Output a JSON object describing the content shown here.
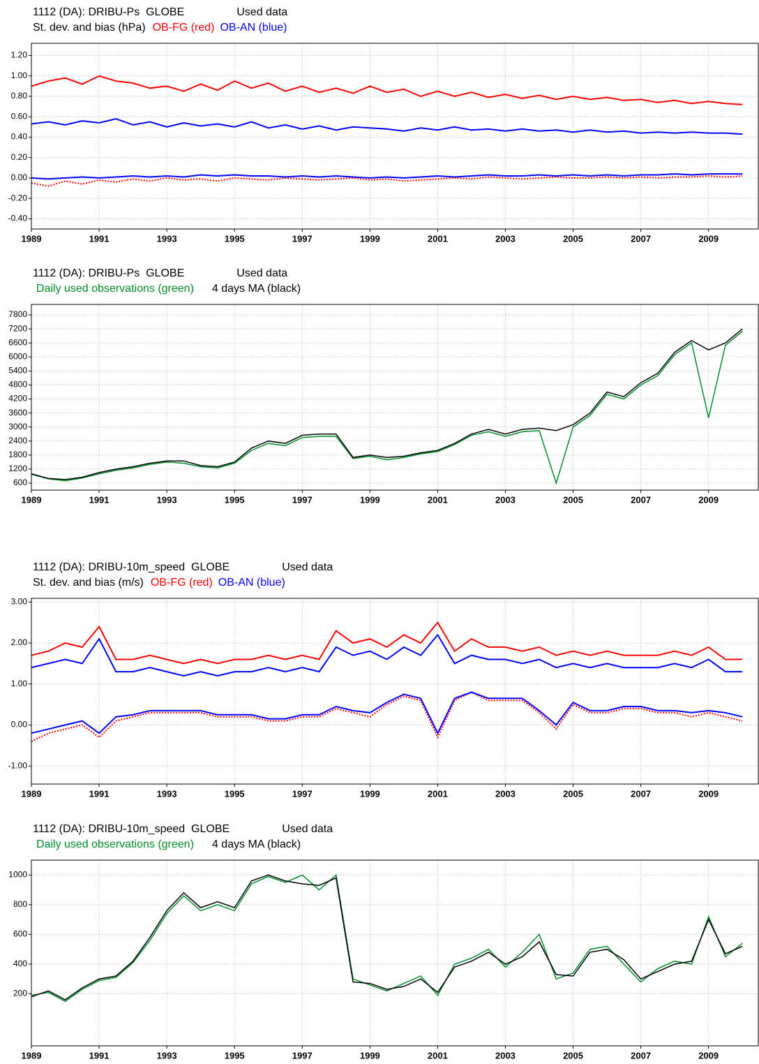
{
  "chart_data": [
    {
      "type": "line",
      "title": "1112 (DA): DRIBU-Ps  GLOBE",
      "annotation": "Used data",
      "ylabel": "St. dev. and bias (hPa)",
      "x": [
        1989,
        1989.5,
        1990,
        1990.5,
        1991,
        1991.5,
        1992,
        1992.5,
        1993,
        1993.5,
        1994,
        1994.5,
        1995,
        1995.5,
        1996,
        1996.5,
        1997,
        1997.5,
        1998,
        1998.5,
        1999,
        1999.5,
        2000,
        2000.5,
        2001,
        2001.5,
        2002,
        2002.5,
        2003,
        2003.5,
        2004,
        2004.5,
        2005,
        2005.5,
        2006,
        2006.5,
        2007,
        2007.5,
        2008,
        2008.5,
        2009,
        2009.5,
        2010
      ],
      "xlim": [
        1989,
        2010.47
      ],
      "xticks": [
        1989,
        1991,
        1993,
        1995,
        1997,
        1999,
        2001,
        2003,
        2005,
        2007,
        2009
      ],
      "ylim": [
        -0.5,
        1.32
      ],
      "yticks": [
        {
          "value": -0.4,
          "label": "-0.40"
        },
        {
          "value": -0.2,
          "label": "-0.20"
        },
        {
          "value": 0,
          "label": "0.00"
        },
        {
          "value": 0.2,
          "label": "0.20"
        },
        {
          "value": 0.4,
          "label": "0.40"
        },
        {
          "value": 0.6,
          "label": "0.60"
        },
        {
          "value": 0.8,
          "label": "0.80"
        },
        {
          "value": 1.0,
          "label": "1.00"
        },
        {
          "value": 1.2,
          "label": "1.20"
        }
      ],
      "grid": true,
      "series": [
        {
          "name": "OB-FG (red)",
          "color": "#ff0000",
          "bias_dotted": true,
          "stdev": [
            0.9,
            0.95,
            0.98,
            0.92,
            1.0,
            0.95,
            0.93,
            0.88,
            0.9,
            0.85,
            0.92,
            0.86,
            0.95,
            0.88,
            0.93,
            0.85,
            0.9,
            0.84,
            0.88,
            0.83,
            0.9,
            0.84,
            0.87,
            0.8,
            0.85,
            0.8,
            0.84,
            0.79,
            0.82,
            0.78,
            0.81,
            0.77,
            0.8,
            0.77,
            0.79,
            0.76,
            0.77,
            0.74,
            0.76,
            0.73,
            0.75,
            0.73,
            0.72
          ],
          "bias": [
            -0.05,
            -0.08,
            -0.03,
            -0.06,
            -0.02,
            -0.04,
            -0.01,
            -0.03,
            0,
            -0.02,
            -0.01,
            -0.03,
            0,
            -0.01,
            -0.02,
            0,
            -0.01,
            -0.02,
            -0.01,
            0,
            -0.02,
            -0.01,
            -0.03,
            -0.02,
            -0.01,
            0,
            -0.01,
            0.01,
            0,
            -0.01,
            0,
            0.01,
            0,
            0,
            0.01,
            0,
            0.01,
            0,
            0.01,
            0.01,
            0.02,
            0.01,
            0.02
          ]
        },
        {
          "name": "OB-AN (blue)",
          "color": "#0000ff",
          "bias_dotted": false,
          "stdev": [
            0.53,
            0.55,
            0.52,
            0.56,
            0.54,
            0.58,
            0.52,
            0.55,
            0.5,
            0.54,
            0.51,
            0.53,
            0.5,
            0.55,
            0.49,
            0.52,
            0.48,
            0.51,
            0.47,
            0.5,
            0.49,
            0.48,
            0.46,
            0.49,
            0.47,
            0.5,
            0.47,
            0.48,
            0.46,
            0.48,
            0.46,
            0.47,
            0.45,
            0.47,
            0.45,
            0.46,
            0.44,
            0.45,
            0.44,
            0.45,
            0.44,
            0.44,
            0.43
          ],
          "bias": [
            0,
            -0.01,
            0,
            0.01,
            0,
            0.01,
            0.02,
            0.01,
            0.02,
            0.01,
            0.03,
            0.02,
            0.03,
            0.02,
            0.02,
            0.01,
            0.02,
            0.01,
            0.02,
            0.01,
            0,
            0.01,
            0,
            0.01,
            0.02,
            0.01,
            0.02,
            0.03,
            0.02,
            0.02,
            0.03,
            0.02,
            0.03,
            0.02,
            0.03,
            0.02,
            0.03,
            0.03,
            0.04,
            0.03,
            0.04,
            0.04,
            0.04
          ]
        }
      ]
    },
    {
      "type": "line",
      "title": "1112 (DA): DRIBU-Ps  GLOBE",
      "annotation": "Used data",
      "x": [
        1989,
        1989.5,
        1990,
        1990.5,
        1991,
        1991.5,
        1992,
        1992.5,
        1993,
        1993.5,
        1994,
        1994.5,
        1995,
        1995.5,
        1996,
        1996.5,
        1997,
        1997.5,
        1998,
        1998.5,
        1999,
        1999.5,
        2000,
        2000.5,
        2001,
        2001.5,
        2002,
        2002.5,
        2003,
        2003.5,
        2004,
        2004.5,
        2005,
        2005.5,
        2006,
        2006.5,
        2007,
        2007.5,
        2008,
        2008.5,
        2009,
        2009.5,
        2010
      ],
      "xlim": [
        1989,
        2010.47
      ],
      "xticks": [
        1989,
        1991,
        1993,
        1995,
        1997,
        1999,
        2001,
        2003,
        2005,
        2007,
        2009
      ],
      "ylim": [
        300,
        8250
      ],
      "yticks": [
        600,
        1200,
        1800,
        2400,
        3000,
        3600,
        4200,
        4800,
        5400,
        6000,
        6600,
        7200,
        7800
      ],
      "grid": true,
      "series": [
        {
          "name": "Daily used observations (green)",
          "color": "#008c2a",
          "values": [
            980,
            780,
            700,
            820,
            1000,
            1150,
            1250,
            1400,
            1500,
            1450,
            1300,
            1250,
            1450,
            2000,
            2300,
            2200,
            2550,
            2600,
            2600,
            1650,
            1750,
            1600,
            1700,
            1850,
            1950,
            2250,
            2650,
            2800,
            2600,
            2800,
            2850,
            600,
            3000,
            3500,
            4400,
            4200,
            4800,
            5200,
            6100,
            6600,
            3400,
            6500,
            7100
          ]
        },
        {
          "name": "4 days MA (black)",
          "color": "#000000",
          "values": [
            1000,
            800,
            750,
            850,
            1050,
            1200,
            1300,
            1450,
            1550,
            1550,
            1350,
            1300,
            1500,
            2100,
            2400,
            2300,
            2650,
            2700,
            2700,
            1700,
            1800,
            1700,
            1750,
            1900,
            2000,
            2300,
            2700,
            2900,
            2700,
            2900,
            2950,
            2850,
            3100,
            3600,
            4500,
            4300,
            4900,
            5300,
            6200,
            6700,
            6300,
            6600,
            7200
          ]
        }
      ]
    },
    {
      "type": "line",
      "title": "1112 (DA): DRIBU-10m_speed  GLOBE",
      "annotation": "Used data",
      "ylabel": "St. dev. and bias (m/s)",
      "x": [
        1989,
        1989.5,
        1990,
        1990.5,
        1991,
        1991.5,
        1992,
        1992.5,
        1993,
        1993.5,
        1994,
        1994.5,
        1995,
        1995.5,
        1996,
        1996.5,
        1997,
        1997.5,
        1998,
        1998.5,
        1999,
        1999.5,
        2000,
        2000.5,
        2001,
        2001.5,
        2002,
        2002.5,
        2003,
        2003.5,
        2004,
        2004.5,
        2005,
        2005.5,
        2006,
        2006.5,
        2007,
        2007.5,
        2008,
        2008.5,
        2009,
        2009.5,
        2010
      ],
      "xlim": [
        1989,
        2010.47
      ],
      "xticks": [
        1989,
        1991,
        1993,
        1995,
        1997,
        1999,
        2001,
        2003,
        2005,
        2007,
        2009
      ],
      "ylim": [
        -1.44,
        3.09
      ],
      "yticks": [
        {
          "value": -1,
          "label": "-1.00"
        },
        {
          "value": 0,
          "label": "0.00"
        },
        {
          "value": 1,
          "label": "1.00"
        },
        {
          "value": 2,
          "label": "2.00"
        },
        {
          "value": 3,
          "label": "3.00"
        }
      ],
      "grid": true,
      "series": [
        {
          "name": "OB-FG (red)",
          "color": "#ff0000",
          "bias_dotted": true,
          "stdev": [
            1.7,
            1.8,
            2.0,
            1.9,
            2.4,
            1.6,
            1.6,
            1.7,
            1.6,
            1.5,
            1.6,
            1.5,
            1.6,
            1.6,
            1.7,
            1.6,
            1.7,
            1.6,
            2.3,
            2.0,
            2.1,
            1.9,
            2.2,
            2.0,
            2.5,
            1.8,
            2.1,
            1.9,
            1.9,
            1.8,
            1.9,
            1.7,
            1.8,
            1.7,
            1.8,
            1.7,
            1.7,
            1.7,
            1.8,
            1.7,
            1.9,
            1.6,
            1.6
          ],
          "bias": [
            -0.4,
            -0.2,
            -0.1,
            0,
            -0.3,
            0.1,
            0.2,
            0.3,
            0.3,
            0.3,
            0.3,
            0.2,
            0.2,
            0.2,
            0.1,
            0.1,
            0.2,
            0.2,
            0.4,
            0.3,
            0.2,
            0.5,
            0.7,
            0.6,
            -0.3,
            0.6,
            0.8,
            0.6,
            0.6,
            0.6,
            0.3,
            -0.1,
            0.5,
            0.3,
            0.3,
            0.4,
            0.4,
            0.3,
            0.3,
            0.2,
            0.3,
            0.2,
            0.1
          ]
        },
        {
          "name": "OB-AN (blue)",
          "color": "#0000ff",
          "bias_dotted": false,
          "stdev": [
            1.4,
            1.5,
            1.6,
            1.5,
            2.1,
            1.3,
            1.3,
            1.4,
            1.3,
            1.2,
            1.3,
            1.2,
            1.3,
            1.3,
            1.4,
            1.3,
            1.4,
            1.3,
            1.9,
            1.7,
            1.8,
            1.6,
            1.9,
            1.7,
            2.2,
            1.5,
            1.7,
            1.6,
            1.6,
            1.5,
            1.6,
            1.4,
            1.5,
            1.4,
            1.5,
            1.4,
            1.4,
            1.4,
            1.5,
            1.4,
            1.6,
            1.3,
            1.3
          ],
          "bias": [
            -0.2,
            -0.1,
            0,
            0.1,
            -0.2,
            0.2,
            0.25,
            0.35,
            0.35,
            0.35,
            0.35,
            0.25,
            0.25,
            0.25,
            0.15,
            0.15,
            0.25,
            0.25,
            0.45,
            0.35,
            0.3,
            0.55,
            0.75,
            0.65,
            -0.2,
            0.65,
            0.8,
            0.65,
            0.65,
            0.65,
            0.35,
            0,
            0.55,
            0.35,
            0.35,
            0.45,
            0.45,
            0.35,
            0.35,
            0.3,
            0.35,
            0.3,
            0.2
          ]
        }
      ]
    },
    {
      "type": "line",
      "title": "1112 (DA): DRIBU-10m_speed  GLOBE",
      "annotation": "Used data",
      "x": [
        1989,
        1989.5,
        1990,
        1990.5,
        1991,
        1991.5,
        1992,
        1992.5,
        1993,
        1993.5,
        1994,
        1994.5,
        1995,
        1995.5,
        1996,
        1996.5,
        1997,
        1997.5,
        1998,
        1998.5,
        1999,
        1999.5,
        2000,
        2000.5,
        2001,
        2001.5,
        2002,
        2002.5,
        2003,
        2003.5,
        2004,
        2004.5,
        2005,
        2005.5,
        2006,
        2006.5,
        2007,
        2007.5,
        2008,
        2008.5,
        2009,
        2009.5,
        2010
      ],
      "xlim": [
        1989,
        2010.47
      ],
      "xticks": [
        1989,
        1991,
        1993,
        1995,
        1997,
        1999,
        2001,
        2003,
        2005,
        2007,
        2009
      ],
      "ylim": [
        -150,
        1100
      ],
      "yticks": [
        200,
        400,
        600,
        800,
        1000
      ],
      "grid": true,
      "series": [
        {
          "name": "Daily used observations (green)",
          "color": "#008c2a",
          "values": [
            190,
            210,
            150,
            230,
            290,
            310,
            410,
            560,
            740,
            860,
            760,
            800,
            760,
            940,
            990,
            950,
            1000,
            900,
            1000,
            300,
            260,
            220,
            270,
            320,
            190,
            400,
            440,
            500,
            380,
            480,
            600,
            300,
            340,
            500,
            520,
            400,
            280,
            370,
            420,
            400,
            720,
            450,
            540
          ]
        },
        {
          "name": "4 days MA (black)",
          "color": "#000000",
          "values": [
            180,
            220,
            160,
            240,
            300,
            320,
            420,
            580,
            760,
            880,
            780,
            820,
            780,
            960,
            1000,
            960,
            940,
            930,
            980,
            280,
            270,
            230,
            250,
            300,
            210,
            380,
            420,
            480,
            400,
            450,
            550,
            330,
            320,
            480,
            500,
            430,
            300,
            350,
            400,
            420,
            700,
            470,
            520
          ]
        }
      ]
    }
  ]
}
